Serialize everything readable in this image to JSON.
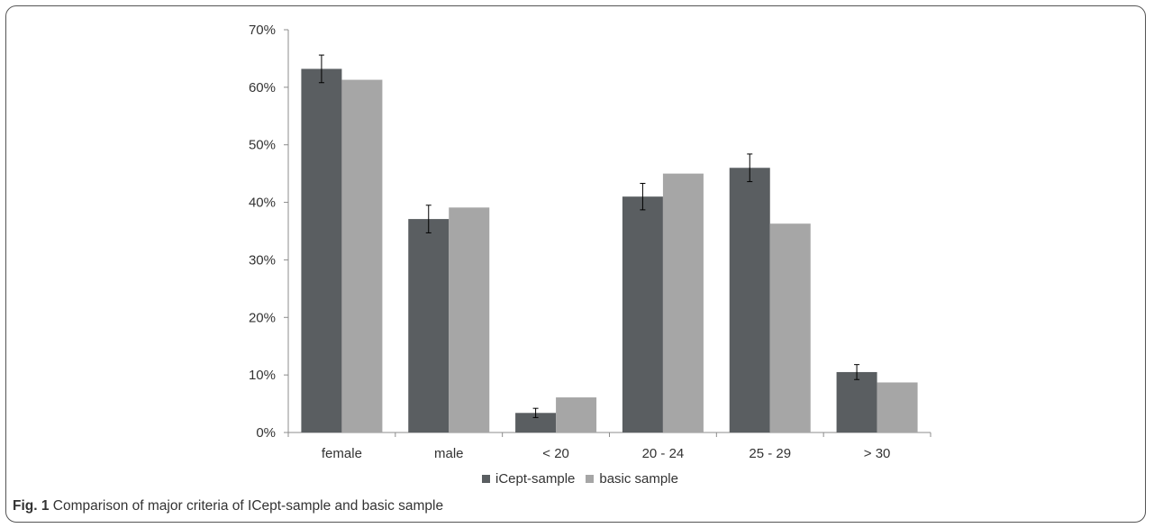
{
  "chart_data": {
    "type": "bar",
    "categories": [
      "female",
      "male",
      "< 20",
      "20 - 24",
      "25 - 29",
      "> 30"
    ],
    "series": [
      {
        "name": "iCept-sample",
        "color": "#5a5e61",
        "values": [
          63.2,
          37.1,
          3.4,
          41.0,
          46.0,
          10.5
        ],
        "error": [
          2.4,
          2.4,
          0.8,
          2.3,
          2.4,
          1.3
        ]
      },
      {
        "name": "basic sample",
        "color": "#a6a6a6",
        "values": [
          61.3,
          39.1,
          6.1,
          45.0,
          36.3,
          8.7
        ]
      }
    ],
    "ylim": [
      0,
      70
    ],
    "yticks": [
      "0%",
      "10%",
      "20%",
      "30%",
      "40%",
      "50%",
      "60%",
      "70%"
    ],
    "grid": false,
    "legend_position": "bottom"
  },
  "caption": {
    "lead": "Fig. 1",
    "text": "Comparison of major criteria of ICept-sample and basic sample"
  }
}
